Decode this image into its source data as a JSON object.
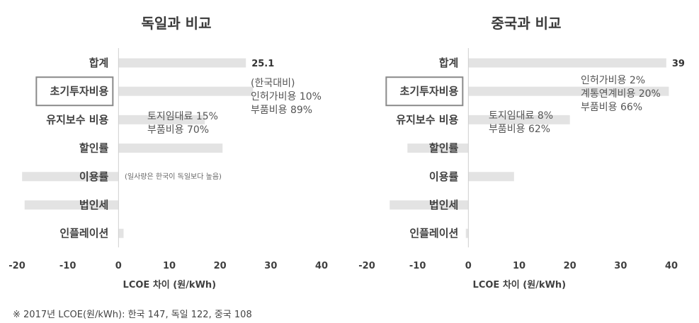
{
  "footnote": "※ 2017년 LCOE(원/kWh): 한국 147, 독일 122, 중국 108",
  "chart_data": [
    {
      "type": "bar",
      "orientation": "horizontal",
      "title": "독일과 비교",
      "xlabel": "LCOE 차이 (원/kWh)",
      "xlim": [
        -20,
        40
      ],
      "xticks": [
        "-20",
        "-10",
        "0",
        "10",
        "20",
        "30",
        "40"
      ],
      "categories": [
        "합계",
        "초기투자비용",
        "유지보수 비용",
        "할인률",
        "이용률",
        "법인세",
        "인플레이션"
      ],
      "values": [
        25.1,
        26.5,
        17,
        20.5,
        -19,
        -18.5,
        1
      ],
      "highlight_category": "초기투자비용",
      "bar_color": "#e3e3e3",
      "data_labels": [
        {
          "category": "합계",
          "text": "25.1"
        }
      ],
      "annotations": [
        {
          "lines": [
            "(한국대비)",
            "인허가비용 10%",
            "부품비용 89%"
          ],
          "near": "초기투자비용"
        },
        {
          "lines": [
            "토지임대료 15%",
            "부품비용 70%"
          ],
          "near": "유지보수 비용"
        },
        {
          "lines": [
            "(일사량은 한국이 독일보다 높음)"
          ],
          "near": "이용률"
        }
      ]
    },
    {
      "type": "bar",
      "orientation": "horizontal",
      "title": "중국과 비교",
      "xlabel": "LCOE 차이 (원/kWh)",
      "xlim": [
        -20,
        40
      ],
      "xticks": [
        "-20",
        "-10",
        "0",
        "10",
        "20",
        "30",
        "40"
      ],
      "categories": [
        "합계",
        "초기투자비용",
        "유지보수 비용",
        "할인률",
        "이용률",
        "법인세",
        "인플레이션"
      ],
      "values": [
        39,
        39.5,
        20,
        -12,
        9,
        -15.5,
        -0.5
      ],
      "highlight_category": "초기투자비용",
      "bar_color": "#e3e3e3",
      "data_labels": [
        {
          "category": "합계",
          "text": "39"
        }
      ],
      "annotations": [
        {
          "lines": [
            "인허가비용 2%",
            "계통연계비용 20%",
            "부품비용 66%"
          ],
          "near": "초기투자비용"
        },
        {
          "lines": [
            "토지임대료 8%",
            "부품비용 62%"
          ],
          "near": "유지보수 비용"
        }
      ]
    }
  ]
}
